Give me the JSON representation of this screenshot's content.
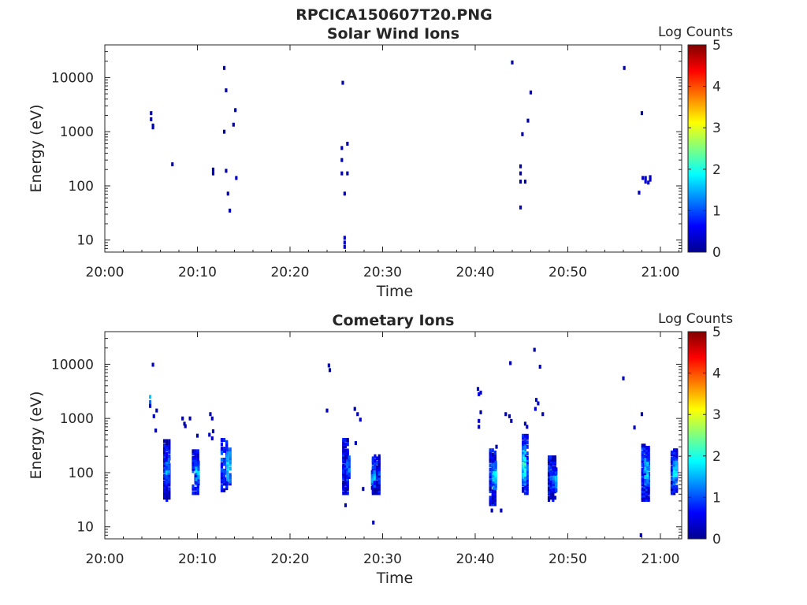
{
  "figure_title": "RPCICA150607T20.PNG",
  "chart_data": [
    {
      "type": "heatmap",
      "title": "Solar Wind Ions",
      "xlabel": "Time",
      "ylabel": "Energy (eV)",
      "x_tick_labels": [
        "20:00",
        "20:10",
        "20:20",
        "20:30",
        "20:40",
        "20:50",
        "21:00"
      ],
      "x_tick_minutes": [
        0,
        10,
        20,
        30,
        40,
        50,
        60
      ],
      "xlim_minutes": [
        0,
        62.3
      ],
      "y_tick_labels": [
        "10",
        "100",
        "1000",
        "10000"
      ],
      "y_tick_values": [
        10,
        100,
        1000,
        10000
      ],
      "y_scale": "log",
      "ylim": [
        6,
        40000
      ],
      "colorbar": {
        "title": "Log Counts",
        "range": [
          0,
          5
        ],
        "tick_labels": [
          "0",
          "1",
          "2",
          "3",
          "4",
          "5"
        ],
        "colormap": "jet"
      },
      "points": [
        [
          5.0,
          2200,
          0.2
        ],
        [
          5.0,
          1700,
          0.2
        ],
        [
          5.2,
          1300,
          0.3
        ],
        [
          5.2,
          1200,
          0.3
        ],
        [
          7.3,
          250,
          0.2
        ],
        [
          11.7,
          200,
          0.3
        ],
        [
          11.7,
          170,
          0.3
        ],
        [
          12.9,
          15000,
          0.2
        ],
        [
          12.9,
          1000,
          0.2
        ],
        [
          13.1,
          5800,
          0.2
        ],
        [
          13.1,
          190,
          0.2
        ],
        [
          13.3,
          72,
          0.2
        ],
        [
          13.5,
          35,
          0.3
        ],
        [
          13.9,
          1350,
          0.2
        ],
        [
          14.1,
          2500,
          0.3
        ],
        [
          14.2,
          140,
          0.3
        ],
        [
          25.7,
          8000,
          0.2
        ],
        [
          25.6,
          500,
          0.2
        ],
        [
          25.6,
          300,
          0.2
        ],
        [
          25.6,
          170,
          0.2
        ],
        [
          26.2,
          170,
          0.2
        ],
        [
          26.2,
          600,
          0.2
        ],
        [
          25.9,
          72,
          0.2
        ],
        [
          25.9,
          11,
          0.3
        ],
        [
          25.9,
          9,
          0.3
        ],
        [
          25.9,
          7.5,
          0.3
        ],
        [
          44.0,
          19000,
          0.2
        ],
        [
          44.9,
          230,
          0.2
        ],
        [
          44.9,
          170,
          0.2
        ],
        [
          44.9,
          120,
          0.2
        ],
        [
          45.4,
          120,
          0.2
        ],
        [
          44.9,
          40,
          0.3
        ],
        [
          45.1,
          900,
          0.2
        ],
        [
          45.7,
          1600,
          0.2
        ],
        [
          46.0,
          5300,
          0.2
        ],
        [
          56.1,
          15000,
          0.2
        ],
        [
          58.0,
          2200,
          0.2
        ],
        [
          57.7,
          75,
          0.3
        ],
        [
          58.1,
          140,
          0.3
        ],
        [
          58.4,
          140,
          0.3
        ],
        [
          58.4,
          120,
          0.4
        ],
        [
          58.7,
          115,
          0.4
        ],
        [
          58.9,
          130,
          0.3
        ],
        [
          58.9,
          145,
          0.3
        ]
      ]
    },
    {
      "type": "heatmap",
      "title": "Cometary Ions",
      "xlabel": "Time",
      "ylabel": "Energy (eV)",
      "x_tick_labels": [
        "20:00",
        "20:10",
        "20:20",
        "20:30",
        "20:40",
        "20:50",
        "21:00"
      ],
      "x_tick_minutes": [
        0,
        10,
        20,
        30,
        40,
        50,
        60
      ],
      "xlim_minutes": [
        0,
        62.3
      ],
      "y_tick_labels": [
        "10",
        "100",
        "1000",
        "10000"
      ],
      "y_tick_values": [
        10,
        100,
        1000,
        10000
      ],
      "y_scale": "log",
      "ylim": [
        6,
        40000
      ],
      "colorbar": {
        "title": "Log Counts",
        "range": [
          0,
          5
        ],
        "tick_labels": [
          "0",
          "1",
          "2",
          "3",
          "4",
          "5"
        ],
        "colormap": "jet"
      },
      "points": [
        [
          5.2,
          9800,
          0.3
        ],
        [
          4.9,
          2500,
          1.6
        ],
        [
          4.9,
          2000,
          1.2
        ],
        [
          4.9,
          1700,
          0.6
        ],
        [
          5.6,
          1400,
          0.3
        ],
        [
          5.3,
          1100,
          0.3
        ],
        [
          5.5,
          600,
          0.2
        ],
        [
          8.4,
          1000,
          0.2
        ],
        [
          8.6,
          800,
          0.2
        ],
        [
          8.7,
          720,
          0.2
        ],
        [
          9.2,
          1000,
          0.2
        ],
        [
          10.0,
          480,
          0.2
        ],
        [
          11.4,
          1200,
          0.3
        ],
        [
          11.6,
          1000,
          0.3
        ],
        [
          11.3,
          500,
          0.3
        ],
        [
          11.7,
          580,
          0.4
        ],
        [
          11.6,
          430,
          0.3
        ],
        [
          24.2,
          9500,
          0.2
        ],
        [
          24.3,
          7800,
          0.2
        ],
        [
          24.0,
          1400,
          0.3
        ],
        [
          27.0,
          1500,
          0.3
        ],
        [
          27.3,
          1200,
          0.3
        ],
        [
          27.6,
          950,
          0.3
        ],
        [
          27.1,
          350,
          0.2
        ],
        [
          27.9,
          50,
          0.2
        ],
        [
          26.0,
          25,
          0.3
        ],
        [
          29.0,
          12,
          0.3
        ],
        [
          40.3,
          3500,
          0.4
        ],
        [
          40.4,
          2800,
          0.5
        ],
        [
          40.6,
          3000,
          0.3
        ],
        [
          40.4,
          900,
          0.3
        ],
        [
          40.4,
          700,
          0.3
        ],
        [
          40.6,
          1300,
          0.2
        ],
        [
          43.3,
          1200,
          0.2
        ],
        [
          43.7,
          1100,
          0.2
        ],
        [
          43.9,
          900,
          0.2
        ],
        [
          42.3,
          300,
          0.2
        ],
        [
          43.8,
          10500,
          0.3
        ],
        [
          46.4,
          18500,
          0.2
        ],
        [
          47.0,
          9000,
          0.3
        ],
        [
          46.6,
          2200,
          0.5
        ],
        [
          46.8,
          1900,
          0.4
        ],
        [
          46.5,
          1500,
          0.4
        ],
        [
          47.3,
          1200,
          0.3
        ],
        [
          45.4,
          800,
          0.3
        ],
        [
          45.6,
          700,
          0.4
        ],
        [
          41.8,
          20,
          0.3
        ],
        [
          42.8,
          20,
          0.3
        ],
        [
          56.0,
          5500,
          0.3
        ],
        [
          57.2,
          680,
          0.3
        ],
        [
          58.0,
          1200,
          0.3
        ],
        [
          57.9,
          7,
          0.2
        ]
      ],
      "clusters": [
        [
          6.7,
          0.8,
          30,
          400,
          0.6
        ],
        [
          6.8,
          0.5,
          60,
          180,
          1.2
        ],
        [
          9.8,
          0.8,
          40,
          260,
          0.7
        ],
        [
          10.0,
          0.5,
          60,
          160,
          1.4
        ],
        [
          12.9,
          0.8,
          45,
          420,
          0.8
        ],
        [
          13.4,
          0.6,
          60,
          280,
          1.6
        ],
        [
          26.0,
          0.7,
          40,
          420,
          0.6
        ],
        [
          26.3,
          0.4,
          60,
          200,
          1.1
        ],
        [
          29.3,
          0.9,
          40,
          210,
          0.7
        ],
        [
          29.0,
          0.5,
          50,
          130,
          1.3
        ],
        [
          41.9,
          0.8,
          25,
          270,
          0.7
        ],
        [
          42.1,
          0.5,
          50,
          160,
          1.5
        ],
        [
          45.4,
          0.7,
          40,
          500,
          0.9
        ],
        [
          45.3,
          0.4,
          60,
          300,
          1.9
        ],
        [
          48.3,
          0.9,
          30,
          200,
          0.7
        ],
        [
          48.6,
          0.6,
          45,
          120,
          1.2
        ],
        [
          58.4,
          0.9,
          30,
          330,
          0.8
        ],
        [
          58.5,
          0.5,
          60,
          180,
          1.6
        ],
        [
          61.5,
          0.8,
          40,
          270,
          0.8
        ],
        [
          61.6,
          0.5,
          60,
          160,
          1.6
        ]
      ]
    }
  ]
}
